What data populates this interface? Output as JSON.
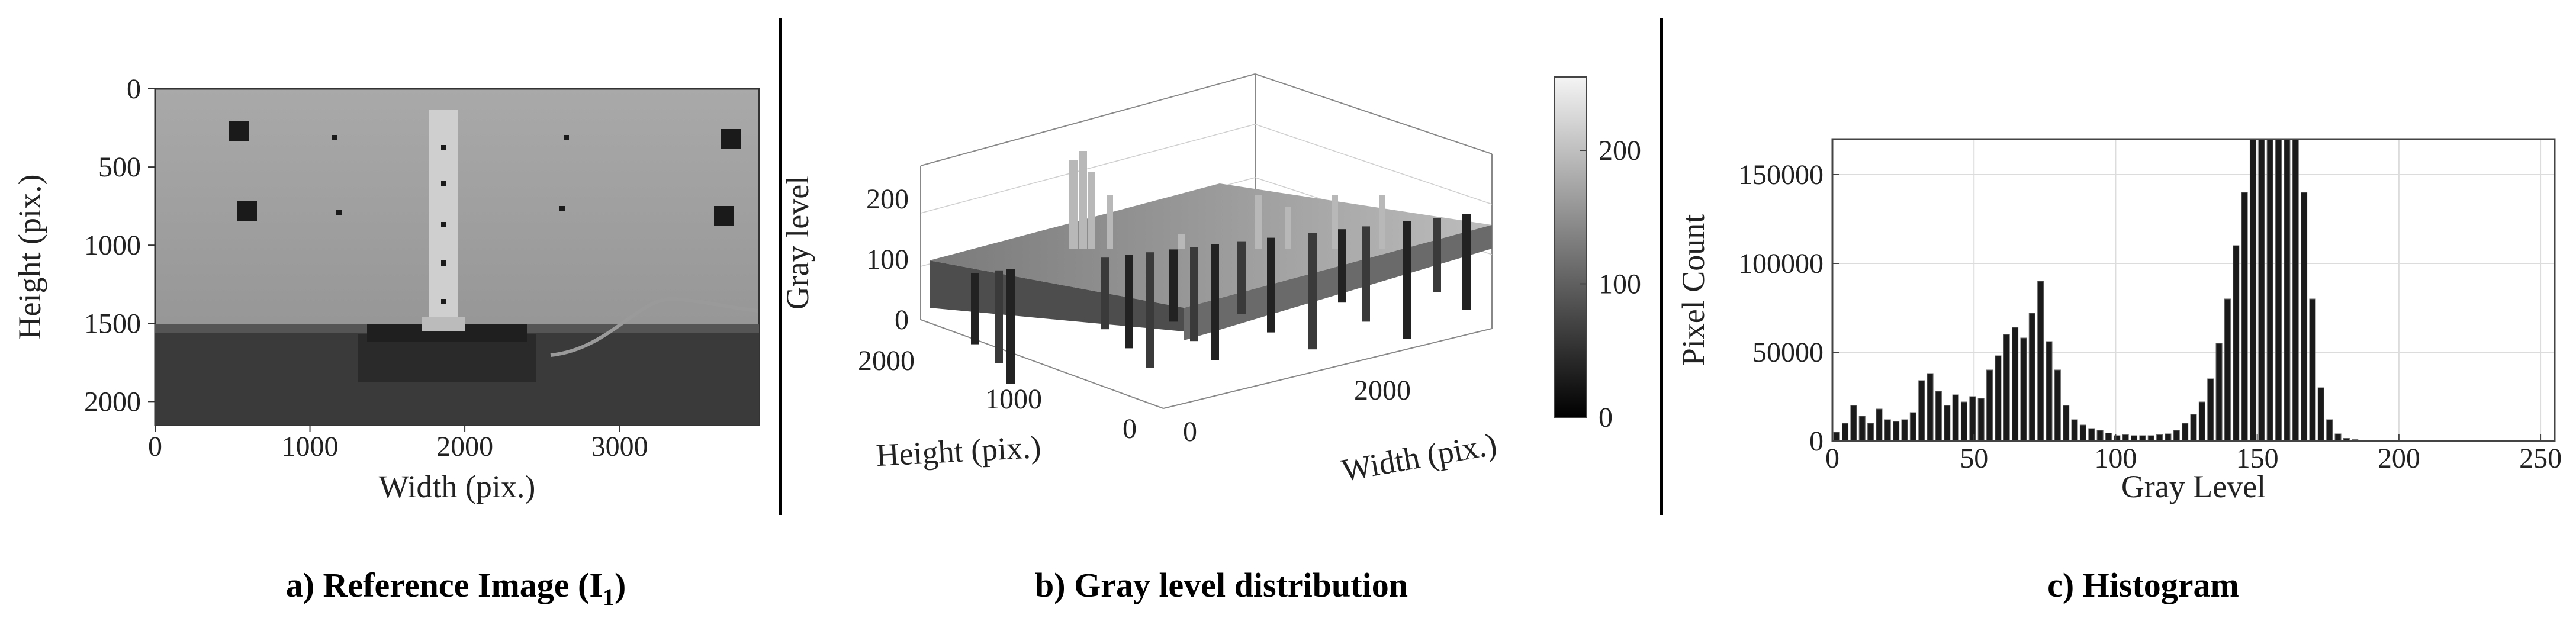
{
  "chart_data": [
    {
      "type": "image",
      "caption": "a) Reference Image (I",
      "caption_subscript": "1",
      "caption_close": ")",
      "xlabel": "Width (pix.)",
      "ylabel": "Height (pix.)",
      "xticks": [
        0,
        1000,
        2000,
        3000
      ],
      "yticks": [
        0,
        500,
        1000,
        1500,
        2000
      ],
      "xlim": [
        0,
        3900
      ],
      "ylim": [
        0,
        2150
      ]
    },
    {
      "type": "surface",
      "caption": "b) Gray level distribution",
      "zlabel": "Gray level",
      "ylabel": "Height (pix.)",
      "xlabel": "Width (pix.)",
      "zticks": [
        0,
        100,
        200
      ],
      "yticks": [
        0,
        1000,
        2000
      ],
      "xticks": [
        0,
        2000
      ],
      "colorbar": {
        "ticks": [
          0,
          100,
          200
        ],
        "range": [
          0,
          255
        ]
      }
    },
    {
      "type": "bar",
      "caption": "c) Histogram",
      "xlabel": "Gray Level",
      "ylabel": "Pixel Count",
      "xticks": [
        0,
        50,
        100,
        150,
        200,
        250
      ],
      "yticks": [
        0,
        50000,
        100000,
        150000
      ],
      "xlim": [
        0,
        255
      ],
      "ylim": [
        0,
        170000
      ],
      "grid": true,
      "x": [
        0,
        3,
        6,
        9,
        12,
        15,
        18,
        21,
        24,
        27,
        30,
        33,
        36,
        39,
        42,
        45,
        48,
        51,
        54,
        57,
        60,
        63,
        66,
        69,
        72,
        75,
        78,
        81,
        84,
        87,
        90,
        93,
        96,
        99,
        102,
        105,
        108,
        111,
        114,
        117,
        120,
        123,
        126,
        129,
        132,
        135,
        138,
        141,
        144,
        147,
        150,
        153,
        156,
        159,
        162,
        165,
        168,
        171,
        174,
        177,
        180,
        183,
        186
      ],
      "values": [
        5000,
        10000,
        20000,
        14000,
        10000,
        18000,
        12000,
        11000,
        12000,
        16000,
        34000,
        38000,
        28000,
        20000,
        26000,
        22000,
        25000,
        24000,
        40000,
        48000,
        60000,
        64000,
        58000,
        72000,
        90000,
        56000,
        40000,
        20000,
        12000,
        9000,
        7000,
        6000,
        4500,
        3000,
        3500,
        3000,
        3000,
        3000,
        3500,
        4000,
        6000,
        10000,
        15000,
        22000,
        35000,
        55000,
        80000,
        110000,
        140000,
        170000,
        170000,
        170000,
        170000,
        170000,
        170000,
        140000,
        80000,
        30000,
        12000,
        4000,
        1500,
        800,
        300
      ]
    }
  ]
}
